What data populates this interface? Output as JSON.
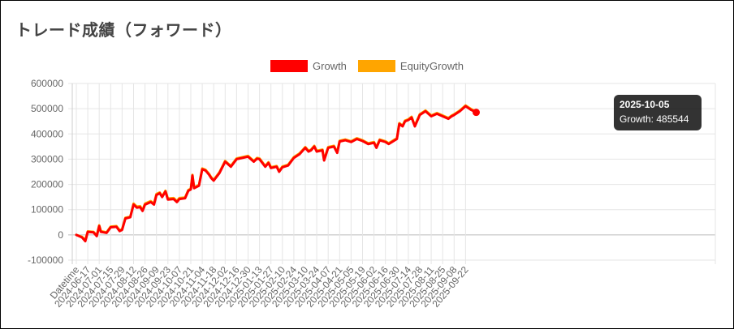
{
  "title": "トレード成績（フォワード）",
  "legend": [
    {
      "label": "Growth",
      "color": "#ff0000"
    },
    {
      "label": "EquityGrowth",
      "color": "#ffa500"
    }
  ],
  "tooltip": {
    "title": "2025-10-05",
    "body": "Growth: 485544"
  },
  "chart_data": {
    "type": "line",
    "ylim": [
      -100000,
      600000
    ],
    "y_ticks": [
      600000,
      500000,
      400000,
      300000,
      200000,
      100000,
      0,
      -100000
    ],
    "y_tick_labels": [
      "600000",
      "500000",
      "400000",
      "300000",
      "200000",
      "100000",
      "0",
      "-100000"
    ],
    "x_ticks": [
      "Datetime",
      "2024-06-17",
      "2024-07-01",
      "2024-07-15",
      "2024-07-29",
      "2024-08-12",
      "2024-08-26",
      "2024-09-09",
      "2024-09-23",
      "2024-10-07",
      "2024-10-21",
      "2024-11-04",
      "2024-11-18",
      "2024-12-02",
      "2024-12-16",
      "2024-12-30",
      "2025-01-13",
      "2025-01-27",
      "2025-02-10",
      "2025-02-24",
      "2025-03-10",
      "2025-03-24",
      "2025-04-07",
      "2025-04-21",
      "2025-05-05",
      "2025-05-19",
      "2025-06-02",
      "2025-06-16",
      "2025-06-30",
      "2025-07-14",
      "2025-07-28",
      "2025-08-11",
      "2025-08-25",
      "2025-09-08",
      "2025-09-22"
    ],
    "grid": true,
    "legend_position": "top",
    "series": [
      {
        "name": "Growth",
        "color": "#ff0000",
        "points": [
          [
            "2024-06-03",
            0
          ],
          [
            "2024-06-10",
            -10000
          ],
          [
            "2024-06-14",
            -25000
          ],
          [
            "2024-06-17",
            12000
          ],
          [
            "2024-06-24",
            10000
          ],
          [
            "2024-06-28",
            -5000
          ],
          [
            "2024-07-01",
            35000
          ],
          [
            "2024-07-03",
            12000
          ],
          [
            "2024-07-10",
            8000
          ],
          [
            "2024-07-15",
            30000
          ],
          [
            "2024-07-22",
            32000
          ],
          [
            "2024-07-26",
            15000
          ],
          [
            "2024-07-29",
            20000
          ],
          [
            "2024-08-02",
            65000
          ],
          [
            "2024-08-08",
            70000
          ],
          [
            "2024-08-12",
            120000
          ],
          [
            "2024-08-16",
            108000
          ],
          [
            "2024-08-20",
            110000
          ],
          [
            "2024-08-23",
            95000
          ],
          [
            "2024-08-26",
            120000
          ],
          [
            "2024-09-02",
            130000
          ],
          [
            "2024-09-06",
            120000
          ],
          [
            "2024-09-09",
            158000
          ],
          [
            "2024-09-13",
            165000
          ],
          [
            "2024-09-16",
            150000
          ],
          [
            "2024-09-20",
            172000
          ],
          [
            "2024-09-23",
            140000
          ],
          [
            "2024-09-30",
            142000
          ],
          [
            "2024-10-04",
            130000
          ],
          [
            "2024-10-07",
            142000
          ],
          [
            "2024-10-14",
            145000
          ],
          [
            "2024-10-18",
            175000
          ],
          [
            "2024-10-21",
            180000
          ],
          [
            "2024-10-23",
            235000
          ],
          [
            "2024-10-25",
            185000
          ],
          [
            "2024-10-31",
            195000
          ],
          [
            "2024-11-04",
            260000
          ],
          [
            "2024-11-08",
            255000
          ],
          [
            "2024-11-12",
            240000
          ],
          [
            "2024-11-15",
            225000
          ],
          [
            "2024-11-18",
            215000
          ],
          [
            "2024-11-25",
            245000
          ],
          [
            "2024-12-02",
            290000
          ],
          [
            "2024-12-09",
            270000
          ],
          [
            "2024-12-16",
            300000
          ],
          [
            "2024-12-23",
            305000
          ],
          [
            "2024-12-30",
            310000
          ],
          [
            "2025-01-06",
            290000
          ],
          [
            "2025-01-10",
            302000
          ],
          [
            "2025-01-13",
            300000
          ],
          [
            "2025-01-20",
            270000
          ],
          [
            "2025-01-24",
            285000
          ],
          [
            "2025-01-27",
            265000
          ],
          [
            "2025-02-03",
            270000
          ],
          [
            "2025-02-06",
            250000
          ],
          [
            "2025-02-10",
            268000
          ],
          [
            "2025-02-17",
            275000
          ],
          [
            "2025-02-24",
            305000
          ],
          [
            "2025-03-03",
            320000
          ],
          [
            "2025-03-10",
            345000
          ],
          [
            "2025-03-14",
            330000
          ],
          [
            "2025-03-17",
            335000
          ],
          [
            "2025-03-21",
            350000
          ],
          [
            "2025-03-24",
            330000
          ],
          [
            "2025-03-31",
            335000
          ],
          [
            "2025-04-02",
            295000
          ],
          [
            "2025-04-07",
            345000
          ],
          [
            "2025-04-14",
            350000
          ],
          [
            "2025-04-18",
            325000
          ],
          [
            "2025-04-21",
            370000
          ],
          [
            "2025-04-28",
            375000
          ],
          [
            "2025-05-05",
            368000
          ],
          [
            "2025-05-12",
            380000
          ],
          [
            "2025-05-19",
            372000
          ],
          [
            "2025-05-26",
            360000
          ],
          [
            "2025-06-02",
            365000
          ],
          [
            "2025-06-05",
            345000
          ],
          [
            "2025-06-09",
            375000
          ],
          [
            "2025-06-16",
            368000
          ],
          [
            "2025-06-20",
            360000
          ],
          [
            "2025-06-30",
            380000
          ],
          [
            "2025-07-03",
            440000
          ],
          [
            "2025-07-07",
            430000
          ],
          [
            "2025-07-10",
            450000
          ],
          [
            "2025-07-14",
            455000
          ],
          [
            "2025-07-18",
            465000
          ],
          [
            "2025-07-22",
            430000
          ],
          [
            "2025-07-28",
            475000
          ],
          [
            "2025-08-04",
            490000
          ],
          [
            "2025-08-11",
            470000
          ],
          [
            "2025-08-18",
            480000
          ],
          [
            "2025-08-25",
            470000
          ],
          [
            "2025-09-01",
            460000
          ],
          [
            "2025-09-05",
            470000
          ],
          [
            "2025-09-08",
            475000
          ],
          [
            "2025-09-15",
            490000
          ],
          [
            "2025-09-22",
            510000
          ],
          [
            "2025-09-29",
            495000
          ],
          [
            "2025-10-05",
            485544
          ]
        ]
      },
      {
        "name": "EquityGrowth",
        "color": "#ffa500",
        "points": [
          [
            "2024-06-03",
            0
          ],
          [
            "2024-06-10",
            -8000
          ],
          [
            "2024-06-14",
            -20000
          ],
          [
            "2024-06-17",
            14000
          ],
          [
            "2024-06-24",
            12000
          ],
          [
            "2024-06-28",
            -2000
          ],
          [
            "2024-07-01",
            38000
          ],
          [
            "2024-07-03",
            15000
          ],
          [
            "2024-07-10",
            10000
          ],
          [
            "2024-07-15",
            33000
          ],
          [
            "2024-07-22",
            35000
          ],
          [
            "2024-07-26",
            18000
          ],
          [
            "2024-07-29",
            23000
          ],
          [
            "2024-08-02",
            68000
          ],
          [
            "2024-08-08",
            72000
          ],
          [
            "2024-08-12",
            124000
          ],
          [
            "2024-08-16",
            112000
          ],
          [
            "2024-08-20",
            114000
          ],
          [
            "2024-08-23",
            98000
          ],
          [
            "2024-08-26",
            124000
          ],
          [
            "2024-09-02",
            134000
          ],
          [
            "2024-09-06",
            124000
          ],
          [
            "2024-09-09",
            162000
          ],
          [
            "2024-09-13",
            168000
          ],
          [
            "2024-09-16",
            153000
          ],
          [
            "2024-09-20",
            175000
          ],
          [
            "2024-09-23",
            144000
          ],
          [
            "2024-09-30",
            146000
          ],
          [
            "2024-10-04",
            134000
          ],
          [
            "2024-10-07",
            146000
          ],
          [
            "2024-10-14",
            148000
          ],
          [
            "2024-10-18",
            178000
          ],
          [
            "2024-10-21",
            183000
          ],
          [
            "2024-10-23",
            238000
          ],
          [
            "2024-10-25",
            188000
          ],
          [
            "2024-10-31",
            198000
          ],
          [
            "2024-11-04",
            263000
          ],
          [
            "2024-11-08",
            258000
          ],
          [
            "2024-11-12",
            243000
          ],
          [
            "2024-11-15",
            228000
          ],
          [
            "2024-11-18",
            218000
          ],
          [
            "2024-11-25",
            248000
          ],
          [
            "2024-12-02",
            293000
          ],
          [
            "2024-12-09",
            273000
          ],
          [
            "2024-12-16",
            303000
          ],
          [
            "2024-12-23",
            308000
          ],
          [
            "2024-12-30",
            313000
          ],
          [
            "2025-01-06",
            293000
          ],
          [
            "2025-01-10",
            305000
          ],
          [
            "2025-01-13",
            303000
          ],
          [
            "2025-01-20",
            273000
          ],
          [
            "2025-01-24",
            288000
          ],
          [
            "2025-01-27",
            268000
          ],
          [
            "2025-02-03",
            273000
          ],
          [
            "2025-02-06",
            253000
          ],
          [
            "2025-02-10",
            271000
          ],
          [
            "2025-02-17",
            278000
          ],
          [
            "2025-02-24",
            308000
          ],
          [
            "2025-03-03",
            323000
          ],
          [
            "2025-03-10",
            348000
          ],
          [
            "2025-03-14",
            333000
          ],
          [
            "2025-03-17",
            338000
          ],
          [
            "2025-03-21",
            353000
          ],
          [
            "2025-03-24",
            333000
          ],
          [
            "2025-03-31",
            338000
          ],
          [
            "2025-04-02",
            298000
          ],
          [
            "2025-04-07",
            348000
          ],
          [
            "2025-04-14",
            353000
          ],
          [
            "2025-04-18",
            328000
          ],
          [
            "2025-04-21",
            373000
          ],
          [
            "2025-04-28",
            378000
          ],
          [
            "2025-05-05",
            371000
          ],
          [
            "2025-05-12",
            383000
          ],
          [
            "2025-05-19",
            375000
          ],
          [
            "2025-05-26",
            363000
          ],
          [
            "2025-06-02",
            368000
          ],
          [
            "2025-06-05",
            348000
          ],
          [
            "2025-06-09",
            378000
          ],
          [
            "2025-06-16",
            371000
          ],
          [
            "2025-06-20",
            363000
          ],
          [
            "2025-06-30",
            383000
          ],
          [
            "2025-07-03",
            443000
          ],
          [
            "2025-07-07",
            433000
          ],
          [
            "2025-07-10",
            453000
          ],
          [
            "2025-07-14",
            458000
          ],
          [
            "2025-07-18",
            468000
          ],
          [
            "2025-07-22",
            433000
          ],
          [
            "2025-07-28",
            478000
          ],
          [
            "2025-08-04",
            493000
          ],
          [
            "2025-08-11",
            473000
          ],
          [
            "2025-08-18",
            483000
          ],
          [
            "2025-08-25",
            473000
          ],
          [
            "2025-09-01",
            463000
          ],
          [
            "2025-09-05",
            473000
          ],
          [
            "2025-09-08",
            478000
          ],
          [
            "2025-09-15",
            493000
          ],
          [
            "2025-09-22",
            513000
          ],
          [
            "2025-09-29",
            498000
          ],
          [
            "2025-10-05",
            488000
          ]
        ]
      }
    ]
  }
}
